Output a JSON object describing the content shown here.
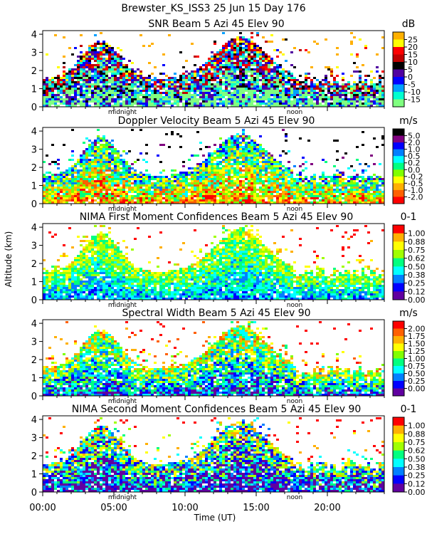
{
  "figure": {
    "title": "Brewster_KS_ISS3  25 Jun 15 Day 176",
    "ylabel": "Altitude (km)",
    "xlabel": "Time (UT)",
    "midnight_label": "midnight",
    "noon_label": "noon"
  },
  "chart_data": [
    {
      "type": "heatmap",
      "title": "SNR Beam 5 Azi  45 Elev 90",
      "units": "dB",
      "xlim": [
        0,
        24
      ],
      "ylim": [
        0,
        4.2
      ],
      "yticks": [
        "0",
        "1",
        "2",
        "3",
        "4"
      ],
      "xticks": [
        "00:00",
        "05:00",
        "10:00",
        "15:00",
        "20:00"
      ],
      "colorbar": {
        "labels": [
          "25",
          "20",
          "15",
          "10",
          "5",
          "0",
          "-5",
          "-10",
          "-15"
        ],
        "colors": [
          "#ffb000",
          "#ffff00",
          "#ff0000",
          "#c00000",
          "#000000",
          "#5000a0",
          "#0000ff",
          "#00a0ff",
          "#00ffd0",
          "#80ff80"
        ]
      }
    },
    {
      "type": "heatmap",
      "title": "Doppler Velocity Beam 5 Azi  45 Elev 90",
      "units": "m/s",
      "xlim": [
        0,
        24
      ],
      "ylim": [
        0,
        4.2
      ],
      "yticks": [
        "0",
        "1",
        "2",
        "3",
        "4"
      ],
      "xticks": [
        "00:00",
        "05:00",
        "10:00",
        "15:00",
        "20:00"
      ],
      "colorbar": {
        "labels": [
          "5.0",
          "2.0",
          "1.0",
          "0.5",
          "0.2",
          "0.0",
          "-0.2",
          "-0.5",
          "-1.0",
          "-2.0"
        ],
        "colors": [
          "#000000",
          "#800080",
          "#0000ff",
          "#0080ff",
          "#00ffff",
          "#00ff80",
          "#80ff00",
          "#ffff00",
          "#ffb000",
          "#ff6000",
          "#ff0000"
        ]
      }
    },
    {
      "type": "heatmap",
      "title": "NIMA First Moment Confidences Beam 5 Azi  45 Elev 90",
      "units": "0-1",
      "xlim": [
        0,
        24
      ],
      "ylim": [
        0,
        4.2
      ],
      "yticks": [
        "0",
        "1",
        "2",
        "3",
        "4"
      ],
      "xticks": [
        "00:00",
        "05:00",
        "10:00",
        "15:00",
        "20:00"
      ],
      "colorbar": {
        "labels": [
          "1.00",
          "0.88",
          "0.75",
          "0.62",
          "0.50",
          "0.38",
          "0.25",
          "0.12",
          "0.00"
        ],
        "colors": [
          "#ff0000",
          "#ffb000",
          "#ffff00",
          "#a0ff00",
          "#00ff80",
          "#00ffff",
          "#0080ff",
          "#0000ff",
          "#6000a0"
        ]
      }
    },
    {
      "type": "heatmap",
      "title": "Spectral Width Beam 5 Azi  45 Elev 90",
      "units": "m/s",
      "xlim": [
        0,
        24
      ],
      "ylim": [
        0,
        4.2
      ],
      "yticks": [
        "0",
        "1",
        "2",
        "3",
        "4"
      ],
      "xticks": [
        "00:00",
        "05:00",
        "10:00",
        "15:00",
        "20:00"
      ],
      "colorbar": {
        "labels": [
          "2.00",
          "1.75",
          "1.50",
          "1.25",
          "1.00",
          "0.75",
          "0.50",
          "0.25",
          "0.00"
        ],
        "colors": [
          "#ff0000",
          "#ff6000",
          "#ffb000",
          "#ffff00",
          "#80ff00",
          "#00ff80",
          "#00ffff",
          "#0080ff",
          "#0000ff",
          "#6000a0"
        ]
      }
    },
    {
      "type": "heatmap",
      "title": "NIMA Second Moment Confidences Beam 5 Azi  45 Elev 90",
      "units": "0-1",
      "xlim": [
        0,
        24
      ],
      "ylim": [
        0,
        4.2
      ],
      "yticks": [
        "0",
        "1",
        "2",
        "3",
        "4"
      ],
      "xticks": [
        "00:00",
        "05:00",
        "10:00",
        "15:00",
        "20:00"
      ],
      "colorbar": {
        "labels": [
          "1.00",
          "0.88",
          "0.75",
          "0.62",
          "0.50",
          "0.38",
          "0.25",
          "0.12",
          "0.00"
        ],
        "colors": [
          "#ff0000",
          "#ffb000",
          "#ffff00",
          "#a0ff00",
          "#00ff80",
          "#00ffff",
          "#0080ff",
          "#0000ff",
          "#6000a0"
        ]
      }
    }
  ]
}
